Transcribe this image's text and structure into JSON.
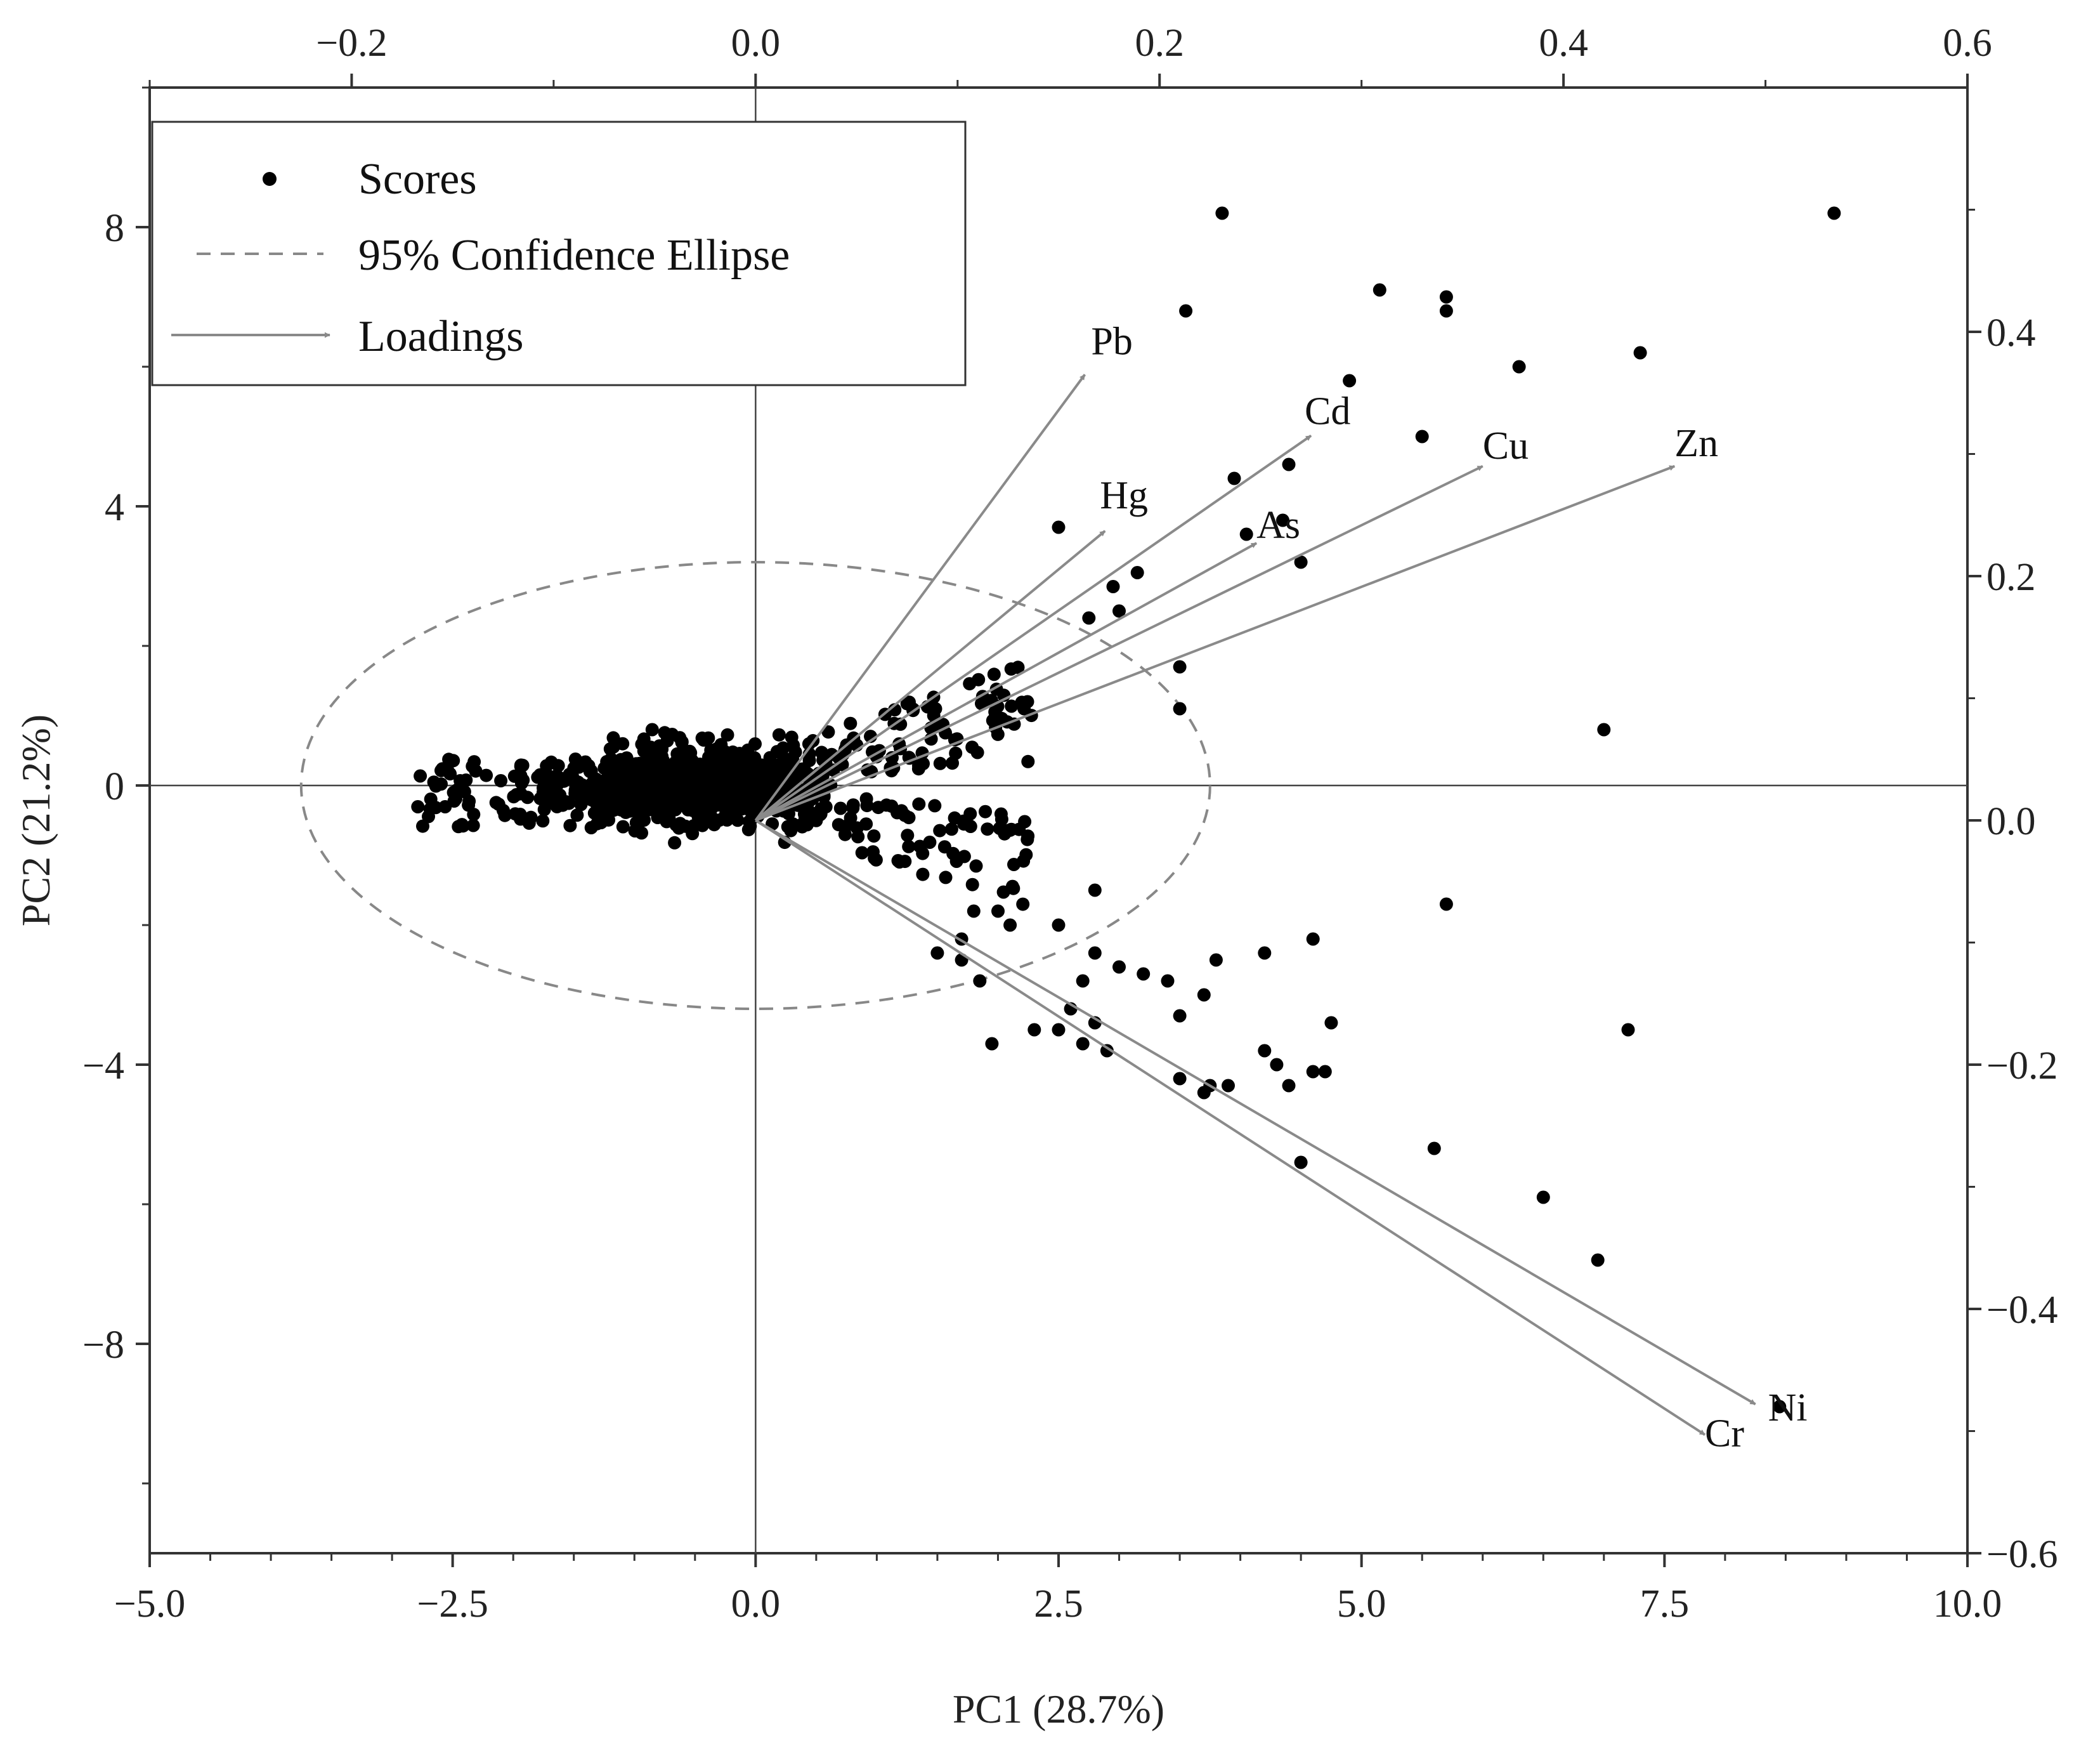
{
  "chart_data": {
    "type": "scatter",
    "xlabel": "PC1 (28.7%)",
    "ylabel": "PC2 (21.2%)",
    "xlim": [
      -5.0,
      10.0
    ],
    "ylim": [
      -11.0,
      10.0
    ],
    "x_ticks": [
      "−5.0",
      "−2.5",
      "0.0",
      "2.5",
      "5.0",
      "7.5",
      "10.0"
    ],
    "y_ticks": [
      "−8",
      "−4",
      "0",
      "4",
      "8"
    ],
    "top_axis": {
      "range": [
        -0.3,
        0.6
      ],
      "ticks": [
        "−0.2",
        "0.0",
        "0.2",
        "0.4",
        "0.6"
      ]
    },
    "right_axis": {
      "range": [
        -0.6,
        0.6
      ],
      "ticks": [
        "−0.6",
        "−0.4",
        "−0.2",
        "0.0",
        "0.2",
        "0.4"
      ]
    },
    "legend": {
      "position": "top-left",
      "items": [
        "Scores",
        "95% Confidence Ellipse",
        "Loadings"
      ]
    },
    "ellipse": {
      "center": [
        0,
        0
      ],
      "rx": 3.75,
      "ry": 3.2
    },
    "loadings": [
      {
        "name": "Pb",
        "x": 0.163,
        "y": 0.365
      },
      {
        "name": "Cd",
        "x": 0.275,
        "y": 0.315
      },
      {
        "name": "Hg",
        "x": 0.173,
        "y": 0.237
      },
      {
        "name": "As",
        "x": 0.248,
        "y": 0.227
      },
      {
        "name": "Cu",
        "x": 0.36,
        "y": 0.29
      },
      {
        "name": "Zn",
        "x": 0.455,
        "y": 0.29
      },
      {
        "name": "Ni",
        "x": 0.495,
        "y": -0.478
      },
      {
        "name": "Cr",
        "x": 0.47,
        "y": -0.503
      }
    ],
    "scores_outliers": [
      [
        8.9,
        8.2
      ],
      [
        3.85,
        8.2
      ],
      [
        3.55,
        6.8
      ],
      [
        5.15,
        7.1
      ],
      [
        5.7,
        7.0
      ],
      [
        5.7,
        6.8
      ],
      [
        6.3,
        6.0
      ],
      [
        7.3,
        6.2
      ],
      [
        4.9,
        5.8
      ],
      [
        5.5,
        5.0
      ],
      [
        4.4,
        4.6
      ],
      [
        3.95,
        4.4
      ],
      [
        2.5,
        3.7
      ],
      [
        4.35,
        3.8
      ],
      [
        4.05,
        3.6
      ],
      [
        4.5,
        3.2
      ],
      [
        3.15,
        3.05
      ],
      [
        2.95,
        2.85
      ],
      [
        7.0,
        0.8
      ],
      [
        2.75,
        2.4
      ],
      [
        3.0,
        2.5
      ],
      [
        3.5,
        1.7
      ],
      [
        3.5,
        1.1
      ],
      [
        2.0,
        -1.8
      ],
      [
        1.8,
        -1.8
      ],
      [
        2.1,
        -2.0
      ],
      [
        1.7,
        -2.2
      ],
      [
        1.5,
        -2.4
      ],
      [
        1.7,
        -2.5
      ],
      [
        2.5,
        -2.0
      ],
      [
        2.8,
        -1.5
      ],
      [
        2.8,
        -2.4
      ],
      [
        3.0,
        -2.6
      ],
      [
        2.7,
        -2.8
      ],
      [
        2.6,
        -3.2
      ],
      [
        2.8,
        -3.4
      ],
      [
        2.5,
        -3.5
      ],
      [
        2.3,
        -3.5
      ],
      [
        2.7,
        -3.7
      ],
      [
        2.9,
        -3.8
      ],
      [
        3.2,
        -2.7
      ],
      [
        3.4,
        -2.8
      ],
      [
        3.5,
        -3.3
      ],
      [
        3.7,
        -3.0
      ],
      [
        3.5,
        -4.2
      ],
      [
        3.7,
        -4.4
      ],
      [
        3.9,
        -4.3
      ],
      [
        3.75,
        -4.3
      ],
      [
        4.2,
        -3.8
      ],
      [
        4.3,
        -4.0
      ],
      [
        4.6,
        -4.1
      ],
      [
        4.7,
        -4.1
      ],
      [
        4.4,
        -4.3
      ],
      [
        4.5,
        -5.4
      ],
      [
        4.2,
        -2.4
      ],
      [
        4.6,
        -2.2
      ],
      [
        4.75,
        -3.4
      ],
      [
        3.8,
        -2.5
      ],
      [
        5.6,
        -5.2
      ],
      [
        5.7,
        -1.7
      ],
      [
        6.5,
        -5.9
      ],
      [
        7.2,
        -3.5
      ],
      [
        6.95,
        -6.8
      ],
      [
        8.45,
        -8.9
      ],
      [
        1.95,
        -3.7
      ],
      [
        1.85,
        -2.8
      ]
    ]
  }
}
